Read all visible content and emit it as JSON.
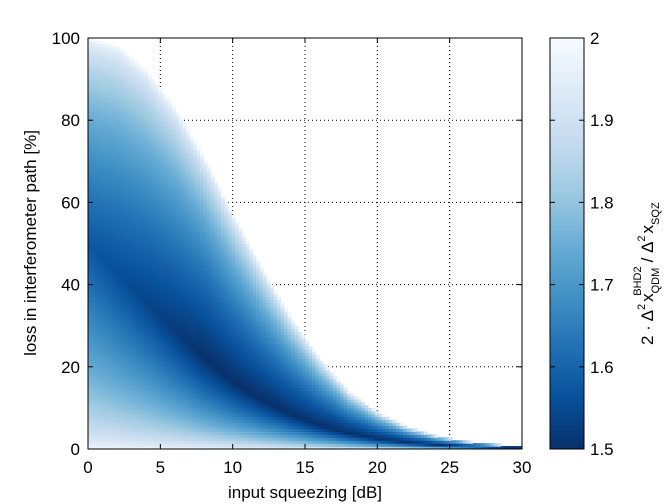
{
  "chart_data": {
    "type": "heatmap",
    "xlabel": "input squeezing [dB]",
    "ylabel": "loss in interferometer path [%]",
    "xlim": [
      0,
      30
    ],
    "ylim": [
      0,
      100
    ],
    "xticks": [
      "0",
      "5",
      "10",
      "15",
      "20",
      "25",
      "30"
    ],
    "yticks": [
      "0",
      "20",
      "40",
      "60",
      "80",
      "100"
    ],
    "grid": true,
    "colorbar": {
      "label_prefix": "2 · Δ",
      "label_sup1": "2",
      "label_x": "x",
      "label_sub_qdm": "QDM",
      "label_sup_bhd2": "BHD2",
      "label_slash": "/ Δ",
      "label_sup2": "2",
      "label_x2": "x",
      "label_sub_sqz": "SQZ",
      "range": [
        1.5,
        2.0
      ],
      "ticks": [
        "1.5",
        "1.6",
        "1.7",
        "1.8",
        "1.9",
        "2"
      ],
      "colormap": [
        "#08306b",
        "#08519c",
        "#2171b5",
        "#4292c6",
        "#6baed6",
        "#9ecae1",
        "#c6dbef",
        "#deebf7",
        "#f7fbff"
      ]
    },
    "region_upper_boundary": {
      "x": [
        0,
        2,
        4,
        6,
        8,
        10,
        12,
        14,
        16,
        18,
        20,
        22,
        24,
        26,
        28,
        30
      ],
      "y": [
        100,
        98,
        92,
        83,
        71,
        57,
        44,
        32,
        22,
        14,
        9,
        5.5,
        3.3,
        2,
        1.2,
        0.8
      ]
    },
    "min_valley": {
      "x": [
        0,
        2,
        4,
        6,
        8,
        10,
        12,
        14,
        16,
        18,
        20,
        22,
        24,
        26,
        28,
        30
      ],
      "y": [
        50,
        43,
        36,
        29,
        22.5,
        16.5,
        12,
        8.5,
        5.8,
        3.9,
        2.6,
        1.7,
        1.1,
        0.7,
        0.45,
        0.3
      ]
    },
    "edge_value": 2.0,
    "valley_value": 1.5
  }
}
